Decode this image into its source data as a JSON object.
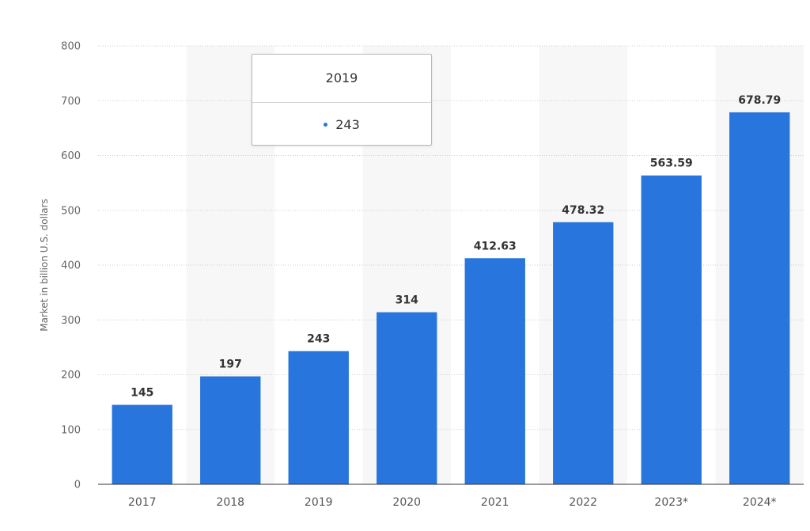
{
  "chart_data": {
    "type": "bar",
    "categories": [
      "2017",
      "2018",
      "2019",
      "2020",
      "2021",
      "2022",
      "2023*",
      "2024*"
    ],
    "values": [
      145,
      197,
      243,
      314,
      412.63,
      478.32,
      563.59,
      678.79
    ],
    "data_labels": [
      "145",
      "197",
      "243",
      "314",
      "412.63",
      "478.32",
      "563.59",
      "678.79"
    ],
    "title": "",
    "xlabel": "",
    "ylabel": "Market in billion U.S. dollars",
    "ylim": [
      0,
      800
    ],
    "yticks": [
      0,
      100,
      200,
      300,
      400,
      500,
      600,
      700,
      800
    ],
    "grid": true,
    "bar_color": "#2876dd",
    "stripe_color": "#f7f7f7"
  },
  "tooltip": {
    "title": "2019",
    "value": "243",
    "dot_color": "#2876dd"
  }
}
